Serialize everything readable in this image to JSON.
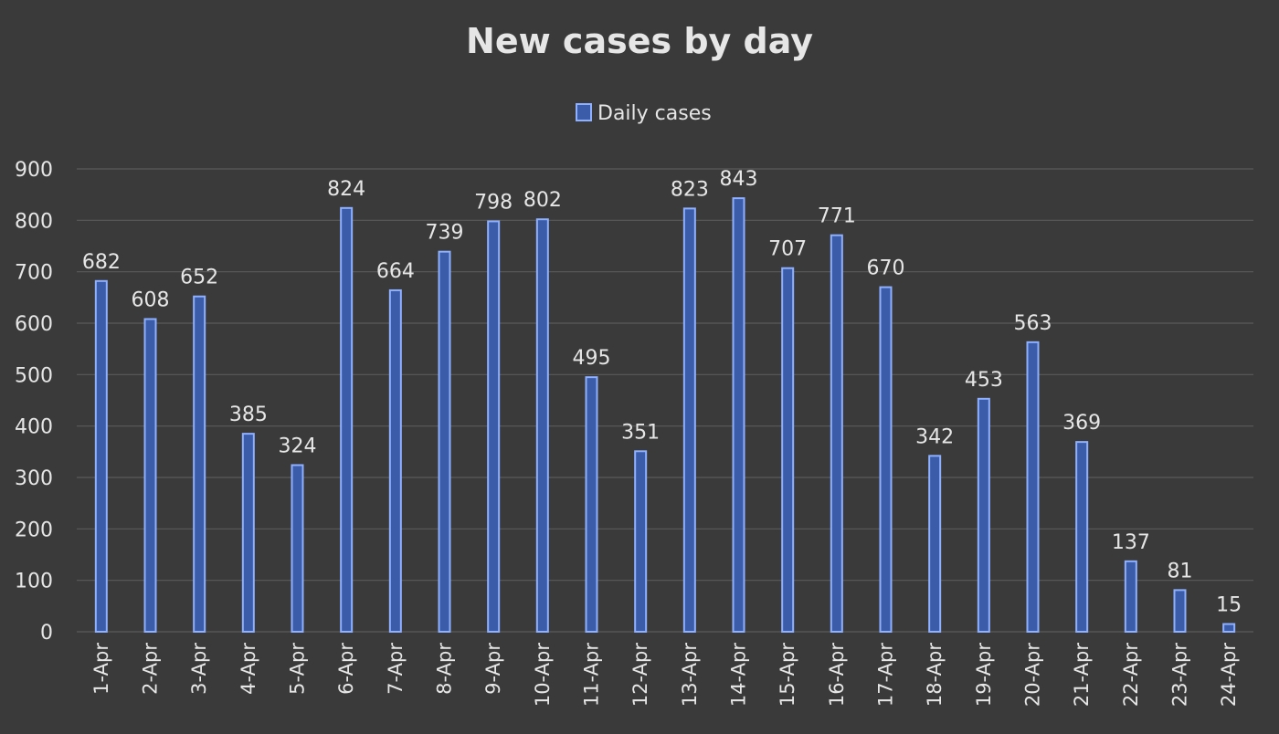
{
  "chart_data": {
    "type": "bar",
    "title": "New cases by day",
    "xlabel": "",
    "ylabel": "",
    "ylim": [
      0,
      900
    ],
    "yticks": [
      0,
      100,
      200,
      300,
      400,
      500,
      600,
      700,
      800,
      900
    ],
    "grid": true,
    "legend_position": "top-center",
    "categories": [
      "1-Apr",
      "2-Apr",
      "3-Apr",
      "4-Apr",
      "5-Apr",
      "6-Apr",
      "7-Apr",
      "8-Apr",
      "9-Apr",
      "10-Apr",
      "11-Apr",
      "12-Apr",
      "13-Apr",
      "14-Apr",
      "15-Apr",
      "16-Apr",
      "17-Apr",
      "18-Apr",
      "19-Apr",
      "20-Apr",
      "21-Apr",
      "22-Apr",
      "23-Apr",
      "24-Apr"
    ],
    "series": [
      {
        "name": "Daily cases",
        "values": [
          682,
          608,
          652,
          385,
          324,
          824,
          664,
          739,
          798,
          802,
          495,
          351,
          823,
          843,
          707,
          771,
          670,
          342,
          453,
          563,
          369,
          137,
          81,
          15
        ]
      }
    ]
  },
  "colors": {
    "background": "#3a3a3a",
    "bar_fill": "#3b5ca8",
    "bar_outline": "#8fb0ff",
    "text": "#e6e6e6",
    "gridline": "#5a5a5a"
  }
}
